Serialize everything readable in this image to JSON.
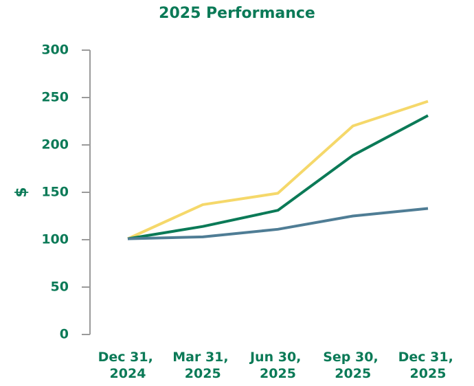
{
  "chart_data": {
    "type": "line",
    "title": "2025 Performance",
    "y_label": "$",
    "categories": [
      "Dec 31, 2024",
      "Mar 31, 2025",
      "Jun 30, 2025",
      "Sep 30, 2025",
      "Dec 31, 2025"
    ],
    "series": [
      {
        "color": "#f5d86a",
        "values": [
          101,
          137,
          149,
          220,
          246
        ]
      },
      {
        "color": "#0b7a57",
        "values": [
          101,
          114,
          131,
          189,
          231
        ]
      },
      {
        "color": "#4f7d95",
        "values": [
          101,
          103,
          111,
          125,
          133
        ]
      }
    ],
    "ylim": [
      0,
      300
    ],
    "yticks": [
      0,
      50,
      100,
      150,
      200,
      250,
      300
    ],
    "grid": false
  }
}
